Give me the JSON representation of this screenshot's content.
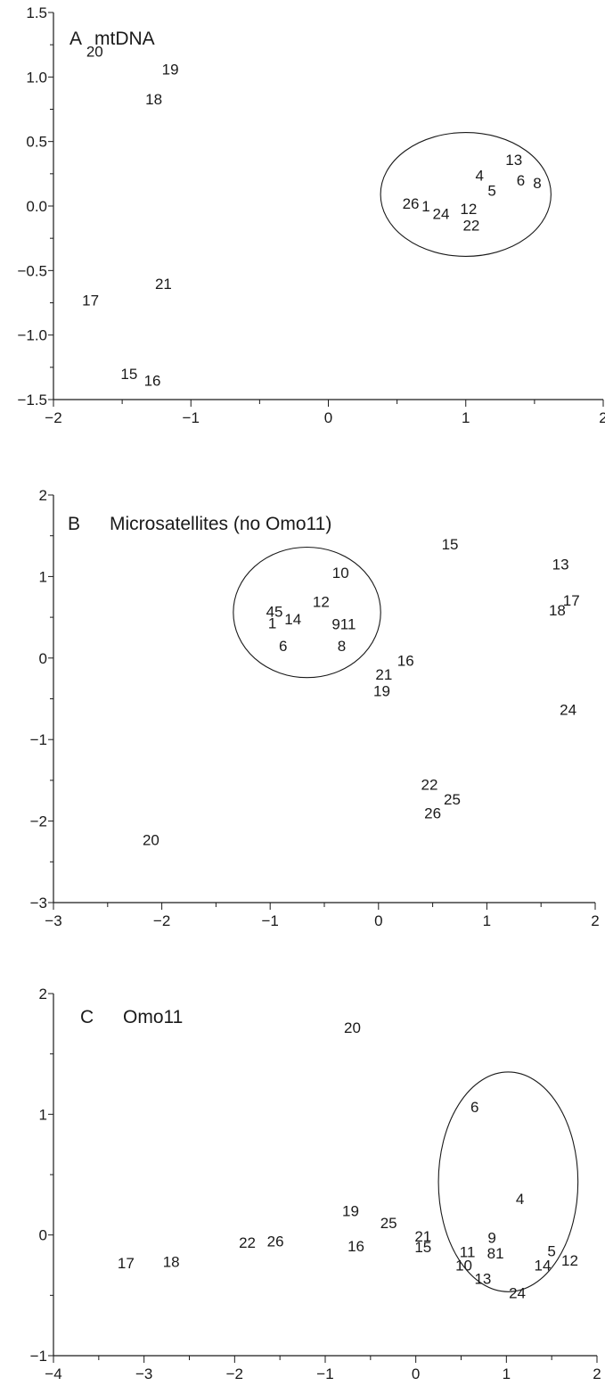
{
  "chart_data": [
    {
      "type": "scatter",
      "panel_letter": "A",
      "title": "mtDNA",
      "xlim": [
        -2,
        2
      ],
      "ylim": [
        -1.5,
        1.5
      ],
      "x_ticks": [
        -2,
        -1,
        0,
        1,
        2
      ],
      "x_tick_labels": [
        "−2",
        "−1",
        "0",
        "1",
        "2"
      ],
      "y_ticks": [
        1.5,
        1.0,
        0.5,
        0.0,
        -0.5,
        -1.0,
        -1.5
      ],
      "y_tick_labels": [
        "1.5",
        "1.0",
        "0.5",
        "0.0",
        "−0.5",
        "−1.0",
        "−1.5"
      ],
      "grid": false,
      "points": [
        {
          "label": "20",
          "x": -1.7,
          "y": 1.2
        },
        {
          "label": "19",
          "x": -1.15,
          "y": 1.06
        },
        {
          "label": "18",
          "x": -1.27,
          "y": 0.83
        },
        {
          "label": "13",
          "x": 1.35,
          "y": 0.36
        },
        {
          "label": "4",
          "x": 1.1,
          "y": 0.24
        },
        {
          "label": "6",
          "x": 1.4,
          "y": 0.2
        },
        {
          "label": "8",
          "x": 1.52,
          "y": 0.18
        },
        {
          "label": "5",
          "x": 1.19,
          "y": 0.12
        },
        {
          "label": "26",
          "x": 0.6,
          "y": 0.02
        },
        {
          "label": "1",
          "x": 0.71,
          "y": 0.0
        },
        {
          "label": "12",
          "x": 1.02,
          "y": -0.02
        },
        {
          "label": "24",
          "x": 0.82,
          "y": -0.06
        },
        {
          "label": "22",
          "x": 1.04,
          "y": -0.15
        },
        {
          "label": "21",
          "x": -1.2,
          "y": -0.6
        },
        {
          "label": "17",
          "x": -1.73,
          "y": -0.73
        },
        {
          "label": "15",
          "x": -1.45,
          "y": -1.3
        },
        {
          "label": "16",
          "x": -1.28,
          "y": -1.35
        }
      ],
      "ellipse": {
        "cx": 1.0,
        "cy": 0.09,
        "rx": 0.62,
        "ry": 0.48
      }
    },
    {
      "type": "scatter",
      "panel_letter": "B",
      "title": "Microsatellites (no Omo11)",
      "xlim": [
        -3,
        2
      ],
      "ylim": [
        -3,
        2
      ],
      "x_ticks": [
        -3,
        -2,
        -1,
        0,
        1,
        2
      ],
      "x_tick_labels": [
        "−3",
        "−2",
        "−1",
        "0",
        "1",
        "2"
      ],
      "y_ticks": [
        2,
        1,
        0,
        -1,
        -2,
        -3
      ],
      "y_tick_labels": [
        "2",
        "1",
        "0",
        "−1",
        "−2",
        "−3"
      ],
      "grid": false,
      "points": [
        {
          "label": "15",
          "x": 0.66,
          "y": 1.4
        },
        {
          "label": "13",
          "x": 1.68,
          "y": 1.15
        },
        {
          "label": "10",
          "x": -0.35,
          "y": 1.05
        },
        {
          "label": "17",
          "x": 1.78,
          "y": 0.71
        },
        {
          "label": "12",
          "x": -0.53,
          "y": 0.69
        },
        {
          "label": "18",
          "x": 1.65,
          "y": 0.59
        },
        {
          "label": "45",
          "x": -0.96,
          "y": 0.57
        },
        {
          "label": "14",
          "x": -0.79,
          "y": 0.48
        },
        {
          "label": "1",
          "x": -0.98,
          "y": 0.43
        },
        {
          "label": "911",
          "x": -0.32,
          "y": 0.42
        },
        {
          "label": "6",
          "x": -0.88,
          "y": 0.15
        },
        {
          "label": "8",
          "x": -0.34,
          "y": 0.15
        },
        {
          "label": "16",
          "x": 0.25,
          "y": -0.03
        },
        {
          "label": "21",
          "x": 0.05,
          "y": -0.2
        },
        {
          "label": "19",
          "x": 0.03,
          "y": -0.4
        },
        {
          "label": "24",
          "x": 1.75,
          "y": -0.63
        },
        {
          "label": "22",
          "x": 0.47,
          "y": -1.55
        },
        {
          "label": "25",
          "x": 0.68,
          "y": -1.73
        },
        {
          "label": "26",
          "x": 0.5,
          "y": -1.9
        },
        {
          "label": "20",
          "x": -2.1,
          "y": -2.23
        }
      ],
      "ellipse": {
        "cx": -0.66,
        "cy": 0.56,
        "rx": 0.68,
        "ry": 0.8
      }
    },
    {
      "type": "scatter",
      "panel_letter": "C",
      "title": "Omo11",
      "xlim": [
        -4,
        2
      ],
      "ylim": [
        -1,
        2
      ],
      "x_ticks": [
        -4,
        -3,
        -2,
        -1,
        0,
        1,
        2
      ],
      "x_tick_labels": [
        "−4",
        "−3",
        "−2",
        "−1",
        "0",
        "1",
        "2"
      ],
      "y_ticks": [
        2,
        1,
        0,
        -1
      ],
      "y_tick_labels": [
        "2",
        "1",
        "0",
        "−1"
      ],
      "grid": false,
      "points": [
        {
          "label": "20",
          "x": -0.7,
          "y": 1.72
        },
        {
          "label": "6",
          "x": 0.65,
          "y": 1.06
        },
        {
          "label": "4",
          "x": 1.15,
          "y": 0.3
        },
        {
          "label": "19",
          "x": -0.72,
          "y": 0.2
        },
        {
          "label": "25",
          "x": -0.3,
          "y": 0.1
        },
        {
          "label": "21",
          "x": 0.08,
          "y": -0.01
        },
        {
          "label": "9",
          "x": 0.84,
          "y": -0.02
        },
        {
          "label": "22",
          "x": -1.86,
          "y": -0.06
        },
        {
          "label": "26",
          "x": -1.55,
          "y": -0.05
        },
        {
          "label": "5",
          "x": 1.5,
          "y": -0.13
        },
        {
          "label": "11",
          "x": 0.57,
          "y": -0.14
        },
        {
          "label": "81",
          "x": 0.88,
          "y": -0.15
        },
        {
          "label": "16",
          "x": -0.66,
          "y": -0.09
        },
        {
          "label": "15",
          "x": 0.08,
          "y": -0.1
        },
        {
          "label": "17",
          "x": -3.2,
          "y": -0.23
        },
        {
          "label": "18",
          "x": -2.7,
          "y": -0.22
        },
        {
          "label": "12",
          "x": 1.7,
          "y": -0.21
        },
        {
          "label": "10",
          "x": 0.53,
          "y": -0.25
        },
        {
          "label": "14",
          "x": 1.4,
          "y": -0.25
        },
        {
          "label": "13",
          "x": 0.74,
          "y": -0.36
        },
        {
          "label": "24",
          "x": 1.12,
          "y": -0.48
        }
      ],
      "ellipse": {
        "cx": 1.02,
        "cy": 0.44,
        "rx": 0.77,
        "ry": 0.91
      }
    }
  ]
}
